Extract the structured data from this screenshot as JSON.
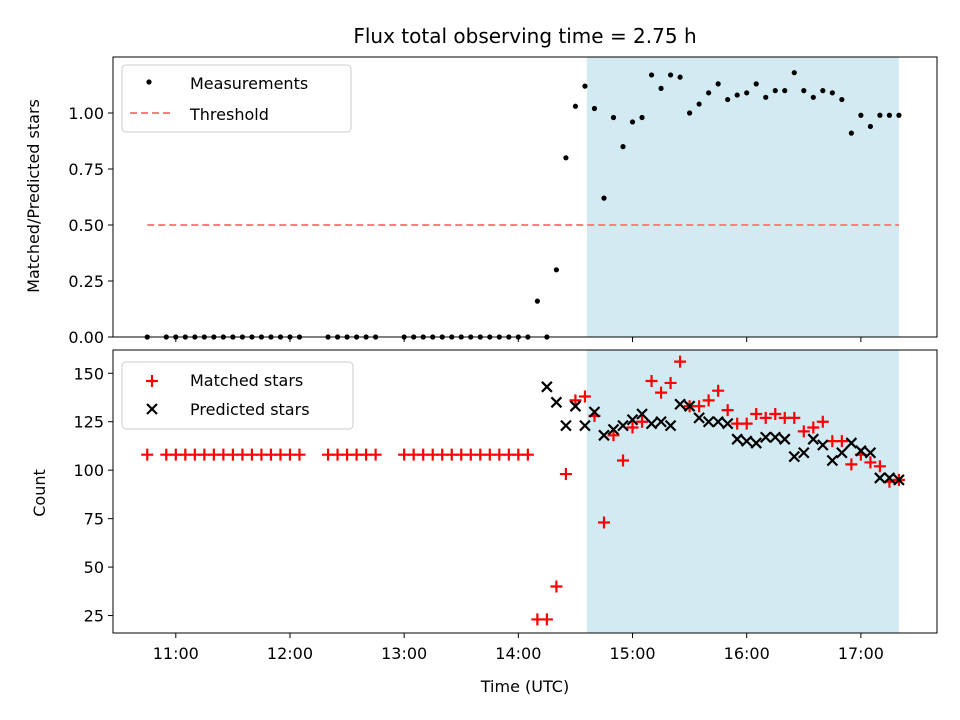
{
  "chart_data": [
    {
      "type": "scatter",
      "title": "Flux total observing time = 2.75 h",
      "xlabel": "",
      "ylabel": "Matched/Predicted stars",
      "xlim": [
        "10:27",
        "17:40"
      ],
      "ylim": [
        0,
        1.25
      ],
      "y_ticks": [
        "0.00",
        "0.25",
        "0.50",
        "0.75",
        "1.00"
      ],
      "grid": false,
      "legend_position": "top-left",
      "shaded_interval": [
        "14:36",
        "17:20"
      ],
      "colors": {
        "measurements": "#000000",
        "threshold": "#ff7f7f",
        "shade": "#add8e6"
      },
      "legend": [
        "Measurements",
        "Threshold"
      ],
      "threshold": {
        "name": "Threshold",
        "y": 0.5,
        "x_range": [
          "10:45",
          "17:20"
        ]
      },
      "series": [
        {
          "name": "Measurements",
          "x": [
            "10:45",
            "10:55",
            "11:00",
            "11:05",
            "11:10",
            "11:15",
            "11:20",
            "11:25",
            "11:30",
            "11:35",
            "11:40",
            "11:45",
            "11:50",
            "11:55",
            "12:00",
            "12:05",
            "12:20",
            "12:25",
            "12:30",
            "12:35",
            "12:40",
            "12:45",
            "13:00",
            "13:05",
            "13:10",
            "13:15",
            "13:20",
            "13:25",
            "13:30",
            "13:35",
            "13:40",
            "13:45",
            "13:50",
            "13:55",
            "14:00",
            "14:05",
            "14:10",
            "14:15",
            "14:20",
            "14:25",
            "14:30",
            "14:35",
            "14:40",
            "14:45",
            "14:50",
            "14:55",
            "15:00",
            "15:05",
            "15:10",
            "15:15",
            "15:20",
            "15:25",
            "15:30",
            "15:35",
            "15:40",
            "15:45",
            "15:50",
            "15:55",
            "16:00",
            "16:05",
            "16:10",
            "16:15",
            "16:20",
            "16:25",
            "16:30",
            "16:35",
            "16:40",
            "16:45",
            "16:50",
            "16:55",
            "17:00",
            "17:05",
            "17:10",
            "17:15",
            "17:20"
          ],
          "y": [
            0,
            0,
            0,
            0,
            0,
            0,
            0,
            0,
            0,
            0,
            0,
            0,
            0,
            0,
            0,
            0,
            0,
            0,
            0,
            0,
            0,
            0,
            0,
            0,
            0,
            0,
            0,
            0,
            0,
            0,
            0,
            0,
            0,
            0,
            0,
            0,
            0.16,
            0,
            0.3,
            0.8,
            1.03,
            1.12,
            1.02,
            0.62,
            0.98,
            0.85,
            0.96,
            0.98,
            1.17,
            1.11,
            1.17,
            1.16,
            1.0,
            1.04,
            1.09,
            1.13,
            1.06,
            1.08,
            1.09,
            1.13,
            1.07,
            1.1,
            1.1,
            1.18,
            1.1,
            1.07,
            1.1,
            1.09,
            1.06,
            0.91,
            0.99,
            0.94,
            0.99,
            0.99,
            0.99
          ]
        }
      ]
    },
    {
      "type": "scatter",
      "title": "",
      "xlabel": "Time (UTC)",
      "ylabel": "Count",
      "xlim": [
        "10:27",
        "17:40"
      ],
      "ylim": [
        16,
        162
      ],
      "x_ticks": [
        "11:00",
        "12:00",
        "13:00",
        "14:00",
        "15:00",
        "16:00",
        "17:00"
      ],
      "y_ticks": [
        "25",
        "50",
        "75",
        "100",
        "125",
        "150"
      ],
      "grid": false,
      "legend_position": "top-left",
      "shaded_interval": [
        "14:36",
        "17:20"
      ],
      "colors": {
        "matched": "#ff0000",
        "predicted": "#000000",
        "shade": "#add8e6"
      },
      "legend": [
        "Matched stars",
        "Predicted stars"
      ],
      "series": [
        {
          "name": "Matched stars",
          "marker": "plus",
          "x": [
            "10:45",
            "10:55",
            "11:00",
            "11:05",
            "11:10",
            "11:15",
            "11:20",
            "11:25",
            "11:30",
            "11:35",
            "11:40",
            "11:45",
            "11:50",
            "11:55",
            "12:00",
            "12:05",
            "12:20",
            "12:25",
            "12:30",
            "12:35",
            "12:40",
            "12:45",
            "13:00",
            "13:05",
            "13:10",
            "13:15",
            "13:20",
            "13:25",
            "13:30",
            "13:35",
            "13:40",
            "13:45",
            "13:50",
            "13:55",
            "14:00",
            "14:05",
            "14:10",
            "14:15",
            "14:20",
            "14:25",
            "14:30",
            "14:35",
            "14:40",
            "14:45",
            "14:50",
            "14:55",
            "15:00",
            "15:05",
            "15:10",
            "15:15",
            "15:20",
            "15:25",
            "15:30",
            "15:35",
            "15:40",
            "15:45",
            "15:50",
            "15:55",
            "16:00",
            "16:05",
            "16:10",
            "16:15",
            "16:20",
            "16:25",
            "16:30",
            "16:35",
            "16:40",
            "16:45",
            "16:50",
            "16:55",
            "17:00",
            "17:05",
            "17:10",
            "17:15",
            "17:20"
          ],
          "y": [
            108,
            108,
            108,
            108,
            108,
            108,
            108,
            108,
            108,
            108,
            108,
            108,
            108,
            108,
            108,
            108,
            108,
            108,
            108,
            108,
            108,
            108,
            108,
            108,
            108,
            108,
            108,
            108,
            108,
            108,
            108,
            108,
            108,
            108,
            108,
            108,
            23,
            23,
            40,
            98,
            136,
            138,
            128,
            73,
            118,
            105,
            122,
            125,
            146,
            140,
            145,
            156,
            133,
            133,
            136,
            141,
            131,
            124,
            124,
            129,
            127,
            129,
            127,
            127,
            120,
            122,
            125,
            115,
            115,
            103,
            108,
            104,
            102,
            94,
            95
          ]
        },
        {
          "name": "Predicted stars",
          "marker": "x",
          "x": [
            "14:15",
            "14:20",
            "14:25",
            "14:30",
            "14:35",
            "14:40",
            "14:45",
            "14:50",
            "14:55",
            "15:00",
            "15:05",
            "15:10",
            "15:15",
            "15:20",
            "15:25",
            "15:30",
            "15:35",
            "15:40",
            "15:45",
            "15:50",
            "15:55",
            "16:00",
            "16:05",
            "16:10",
            "16:15",
            "16:20",
            "16:25",
            "16:30",
            "16:35",
            "16:40",
            "16:45",
            "16:50",
            "16:55",
            "17:00",
            "17:05",
            "17:10",
            "17:15",
            "17:20"
          ],
          "y": [
            143,
            135,
            123,
            133,
            123,
            130,
            118,
            121,
            123,
            126,
            129,
            124,
            125,
            123,
            134,
            133,
            127,
            125,
            125,
            124,
            116,
            115,
            114,
            117,
            117,
            116,
            107,
            109,
            116,
            113,
            105,
            109,
            114,
            110,
            109,
            96,
            96,
            95
          ]
        }
      ]
    }
  ]
}
